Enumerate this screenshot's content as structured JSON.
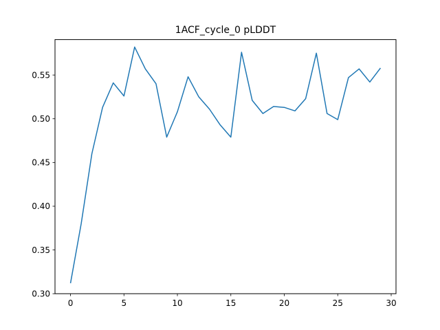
{
  "chart_data": {
    "type": "line",
    "title": "1ACF_cycle_0 pLDDT",
    "xlabel": "",
    "ylabel": "",
    "xlim": [
      -1.45,
      30.45
    ],
    "ylim": [
      0.3,
      0.5905
    ],
    "xticks": [
      0,
      5,
      10,
      15,
      20,
      25,
      30
    ],
    "yticks": [
      0.3,
      0.35,
      0.4,
      0.45,
      0.5,
      0.55
    ],
    "ytick_labels": [
      "0.30",
      "0.35",
      "0.40",
      "0.45",
      "0.50",
      "0.55"
    ],
    "grid": false,
    "line_color": "#1f77b4",
    "series": [
      {
        "x": [
          0,
          1,
          2,
          3,
          4,
          5,
          6,
          7,
          8,
          9,
          10,
          11,
          12,
          13,
          14,
          15,
          16,
          17,
          18,
          19,
          20,
          21,
          22,
          23,
          24,
          25,
          26,
          27,
          28,
          29
        ],
        "values": [
          0.312,
          0.38,
          0.46,
          0.513,
          0.541,
          0.526,
          0.582,
          0.557,
          0.54,
          0.479,
          0.508,
          0.548,
          0.525,
          0.511,
          0.493,
          0.479,
          0.576,
          0.521,
          0.506,
          0.514,
          0.513,
          0.509,
          0.523,
          0.575,
          0.506,
          0.499,
          0.547,
          0.557,
          0.542,
          0.558
        ]
      }
    ]
  }
}
